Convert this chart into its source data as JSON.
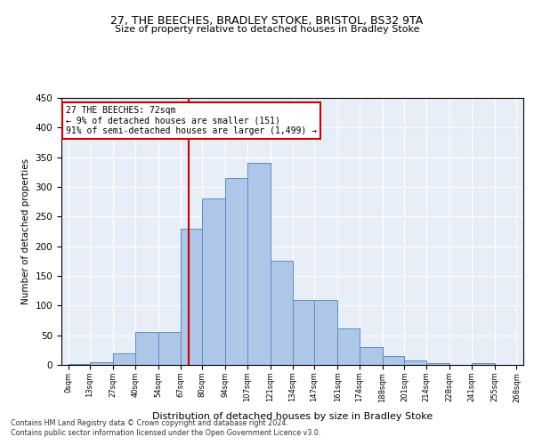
{
  "title1": "27, THE BEECHES, BRADLEY STOKE, BRISTOL, BS32 9TA",
  "title2": "Size of property relative to detached houses in Bradley Stoke",
  "xlabel": "Distribution of detached houses by size in Bradley Stoke",
  "ylabel": "Number of detached properties",
  "annotation_title": "27 THE BEECHES: 72sqm",
  "annotation_line1": "← 9% of detached houses are smaller (151)",
  "annotation_line2": "91% of semi-detached houses are larger (1,499) →",
  "property_size": 72,
  "bin_edges": [
    0,
    13,
    27,
    40,
    54,
    67,
    80,
    94,
    107,
    121,
    134,
    147,
    161,
    174,
    188,
    201,
    214,
    228,
    241,
    255,
    268
  ],
  "bar_heights": [
    2,
    5,
    20,
    55,
    55,
    230,
    280,
    315,
    340,
    175,
    110,
    110,
    62,
    30,
    15,
    8,
    3,
    0,
    3,
    0
  ],
  "bar_color": "#aec6e8",
  "bar_edge_color": "#5a8fc0",
  "vline_color": "#cc0000",
  "vline_x": 72,
  "annotation_box_color": "#ffffff",
  "annotation_box_edge": "#cc0000",
  "background_color": "#e8eef7",
  "ylim": [
    0,
    450
  ],
  "footer1": "Contains HM Land Registry data © Crown copyright and database right 2024.",
  "footer2": "Contains public sector information licensed under the Open Government Licence v3.0."
}
